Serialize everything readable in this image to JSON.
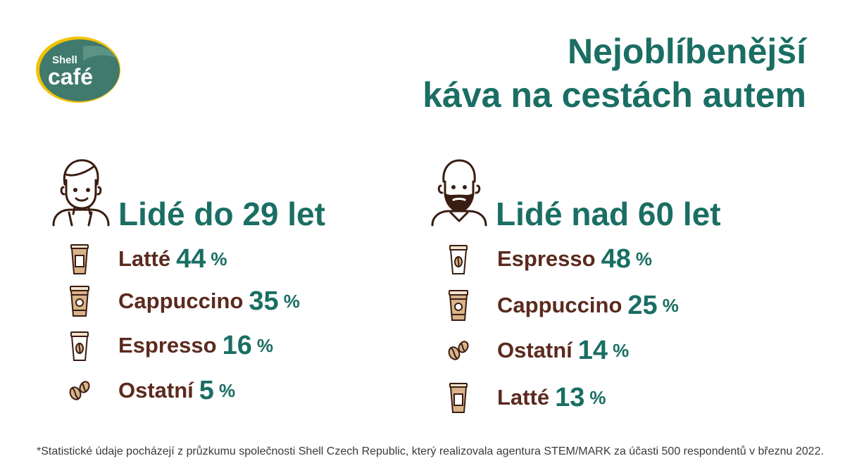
{
  "logo": {
    "brand_top": "Shell",
    "brand_bottom": "café"
  },
  "title": {
    "line1": "Nejoblíbenější",
    "line2": "káva na cestách autem"
  },
  "groups": [
    {
      "title": "Lidé do 29 let",
      "avatar": "young-man-icon",
      "items": [
        {
          "label": "Latté",
          "value": "44",
          "unit": "%",
          "icon": "latte-cup-icon"
        },
        {
          "label": "Cappuccino",
          "value": "35",
          "unit": "%",
          "icon": "cappuccino-cup-icon"
        },
        {
          "label": "Espresso",
          "value": "16",
          "unit": "%",
          "icon": "espresso-cup-icon"
        },
        {
          "label": "Ostatní",
          "value": "5",
          "unit": "%",
          "icon": "coffee-beans-icon"
        }
      ]
    },
    {
      "title": "Lidé nad 60 let",
      "avatar": "bearded-man-icon",
      "items": [
        {
          "label": "Espresso",
          "value": "48",
          "unit": "%",
          "icon": "espresso-cup-icon"
        },
        {
          "label": "Cappuccino",
          "value": "25",
          "unit": "%",
          "icon": "cappuccino-cup-icon"
        },
        {
          "label": "Ostatní",
          "value": "14",
          "unit": "%",
          "icon": "coffee-beans-icon"
        },
        {
          "label": "Latté",
          "value": "13",
          "unit": "%",
          "icon": "latte-cup-icon"
        }
      ]
    }
  ],
  "footnote": "*Statistické údaje pocházejí z průzkumu společnosti Shell Czech Republic, který realizovala agentura STEM/MARK za účasti 500 respondentů v březnu 2022.",
  "colors": {
    "teal": "#1a6e63",
    "brown": "#5b2a1e",
    "logo_green": "#3f7a6c",
    "logo_yellow": "#f2c200"
  }
}
